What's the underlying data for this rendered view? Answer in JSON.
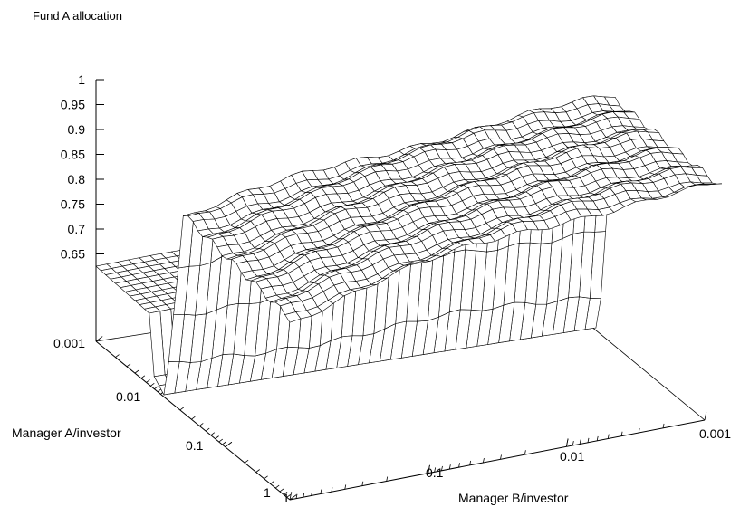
{
  "chart_data": {
    "type": "surface3d",
    "title": "Fund A allocation",
    "z_axis": {
      "ticks": [
        "1",
        "0.95",
        "0.9",
        "0.85",
        "0.8",
        "0.75",
        "0.7",
        "0.65"
      ],
      "base_label": "0.001",
      "range": [
        0.6,
        1.0
      ]
    },
    "x_axis": {
      "label": "Manager A/investor",
      "scale": "log",
      "range": [
        0.001,
        1
      ],
      "ticks": [
        "0.01",
        "0.1",
        "1"
      ]
    },
    "y_axis": {
      "label": "Manager B/investor",
      "scale": "log",
      "range": [
        0.001,
        1
      ],
      "ticks": [
        "0.001",
        "0.01",
        "0.1",
        "1"
      ]
    },
    "surface_description_values": {
      "plateau_max": 1.0,
      "plateau_near_cliff": 0.92,
      "low_shelf": 0.715,
      "valley_min": 0.6
    },
    "grid": true,
    "legend": "none"
  }
}
